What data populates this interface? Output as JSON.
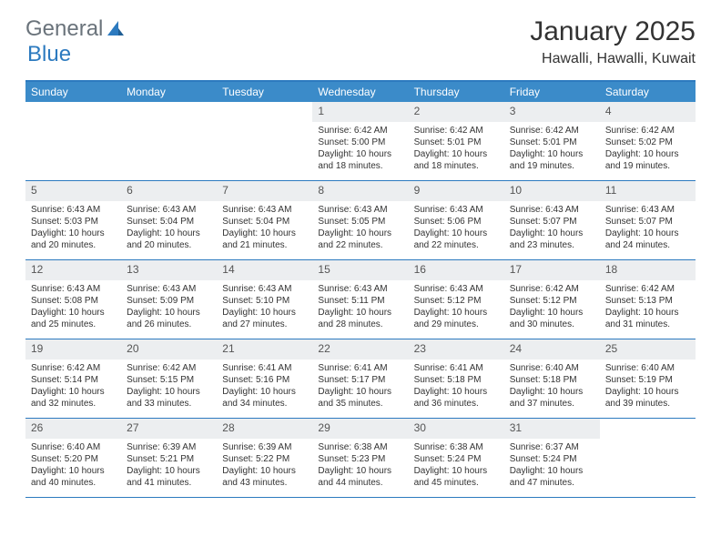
{
  "brand": {
    "word1": "General",
    "word2": "Blue",
    "color_gray": "#6a737b",
    "color_blue": "#2c7abf"
  },
  "title": "January 2025",
  "location": "Hawalli, Hawalli, Kuwait",
  "colors": {
    "header_bg": "#3b8bc9",
    "border": "#2c7abf",
    "daynum_bg": "#eceef0",
    "text": "#333333",
    "white": "#ffffff"
  },
  "weekdays": [
    "Sunday",
    "Monday",
    "Tuesday",
    "Wednesday",
    "Thursday",
    "Friday",
    "Saturday"
  ],
  "weeks": [
    [
      null,
      null,
      null,
      {
        "n": "1",
        "sr": "6:42 AM",
        "ss": "5:00 PM",
        "dl": "10 hours and 18 minutes."
      },
      {
        "n": "2",
        "sr": "6:42 AM",
        "ss": "5:01 PM",
        "dl": "10 hours and 18 minutes."
      },
      {
        "n": "3",
        "sr": "6:42 AM",
        "ss": "5:01 PM",
        "dl": "10 hours and 19 minutes."
      },
      {
        "n": "4",
        "sr": "6:42 AM",
        "ss": "5:02 PM",
        "dl": "10 hours and 19 minutes."
      }
    ],
    [
      {
        "n": "5",
        "sr": "6:43 AM",
        "ss": "5:03 PM",
        "dl": "10 hours and 20 minutes."
      },
      {
        "n": "6",
        "sr": "6:43 AM",
        "ss": "5:04 PM",
        "dl": "10 hours and 20 minutes."
      },
      {
        "n": "7",
        "sr": "6:43 AM",
        "ss": "5:04 PM",
        "dl": "10 hours and 21 minutes."
      },
      {
        "n": "8",
        "sr": "6:43 AM",
        "ss": "5:05 PM",
        "dl": "10 hours and 22 minutes."
      },
      {
        "n": "9",
        "sr": "6:43 AM",
        "ss": "5:06 PM",
        "dl": "10 hours and 22 minutes."
      },
      {
        "n": "10",
        "sr": "6:43 AM",
        "ss": "5:07 PM",
        "dl": "10 hours and 23 minutes."
      },
      {
        "n": "11",
        "sr": "6:43 AM",
        "ss": "5:07 PM",
        "dl": "10 hours and 24 minutes."
      }
    ],
    [
      {
        "n": "12",
        "sr": "6:43 AM",
        "ss": "5:08 PM",
        "dl": "10 hours and 25 minutes."
      },
      {
        "n": "13",
        "sr": "6:43 AM",
        "ss": "5:09 PM",
        "dl": "10 hours and 26 minutes."
      },
      {
        "n": "14",
        "sr": "6:43 AM",
        "ss": "5:10 PM",
        "dl": "10 hours and 27 minutes."
      },
      {
        "n": "15",
        "sr": "6:43 AM",
        "ss": "5:11 PM",
        "dl": "10 hours and 28 minutes."
      },
      {
        "n": "16",
        "sr": "6:43 AM",
        "ss": "5:12 PM",
        "dl": "10 hours and 29 minutes."
      },
      {
        "n": "17",
        "sr": "6:42 AM",
        "ss": "5:12 PM",
        "dl": "10 hours and 30 minutes."
      },
      {
        "n": "18",
        "sr": "6:42 AM",
        "ss": "5:13 PM",
        "dl": "10 hours and 31 minutes."
      }
    ],
    [
      {
        "n": "19",
        "sr": "6:42 AM",
        "ss": "5:14 PM",
        "dl": "10 hours and 32 minutes."
      },
      {
        "n": "20",
        "sr": "6:42 AM",
        "ss": "5:15 PM",
        "dl": "10 hours and 33 minutes."
      },
      {
        "n": "21",
        "sr": "6:41 AM",
        "ss": "5:16 PM",
        "dl": "10 hours and 34 minutes."
      },
      {
        "n": "22",
        "sr": "6:41 AM",
        "ss": "5:17 PM",
        "dl": "10 hours and 35 minutes."
      },
      {
        "n": "23",
        "sr": "6:41 AM",
        "ss": "5:18 PM",
        "dl": "10 hours and 36 minutes."
      },
      {
        "n": "24",
        "sr": "6:40 AM",
        "ss": "5:18 PM",
        "dl": "10 hours and 37 minutes."
      },
      {
        "n": "25",
        "sr": "6:40 AM",
        "ss": "5:19 PM",
        "dl": "10 hours and 39 minutes."
      }
    ],
    [
      {
        "n": "26",
        "sr": "6:40 AM",
        "ss": "5:20 PM",
        "dl": "10 hours and 40 minutes."
      },
      {
        "n": "27",
        "sr": "6:39 AM",
        "ss": "5:21 PM",
        "dl": "10 hours and 41 minutes."
      },
      {
        "n": "28",
        "sr": "6:39 AM",
        "ss": "5:22 PM",
        "dl": "10 hours and 43 minutes."
      },
      {
        "n": "29",
        "sr": "6:38 AM",
        "ss": "5:23 PM",
        "dl": "10 hours and 44 minutes."
      },
      {
        "n": "30",
        "sr": "6:38 AM",
        "ss": "5:24 PM",
        "dl": "10 hours and 45 minutes."
      },
      {
        "n": "31",
        "sr": "6:37 AM",
        "ss": "5:24 PM",
        "dl": "10 hours and 47 minutes."
      },
      null
    ]
  ],
  "labels": {
    "sunrise": "Sunrise:",
    "sunset": "Sunset:",
    "daylight": "Daylight:"
  }
}
